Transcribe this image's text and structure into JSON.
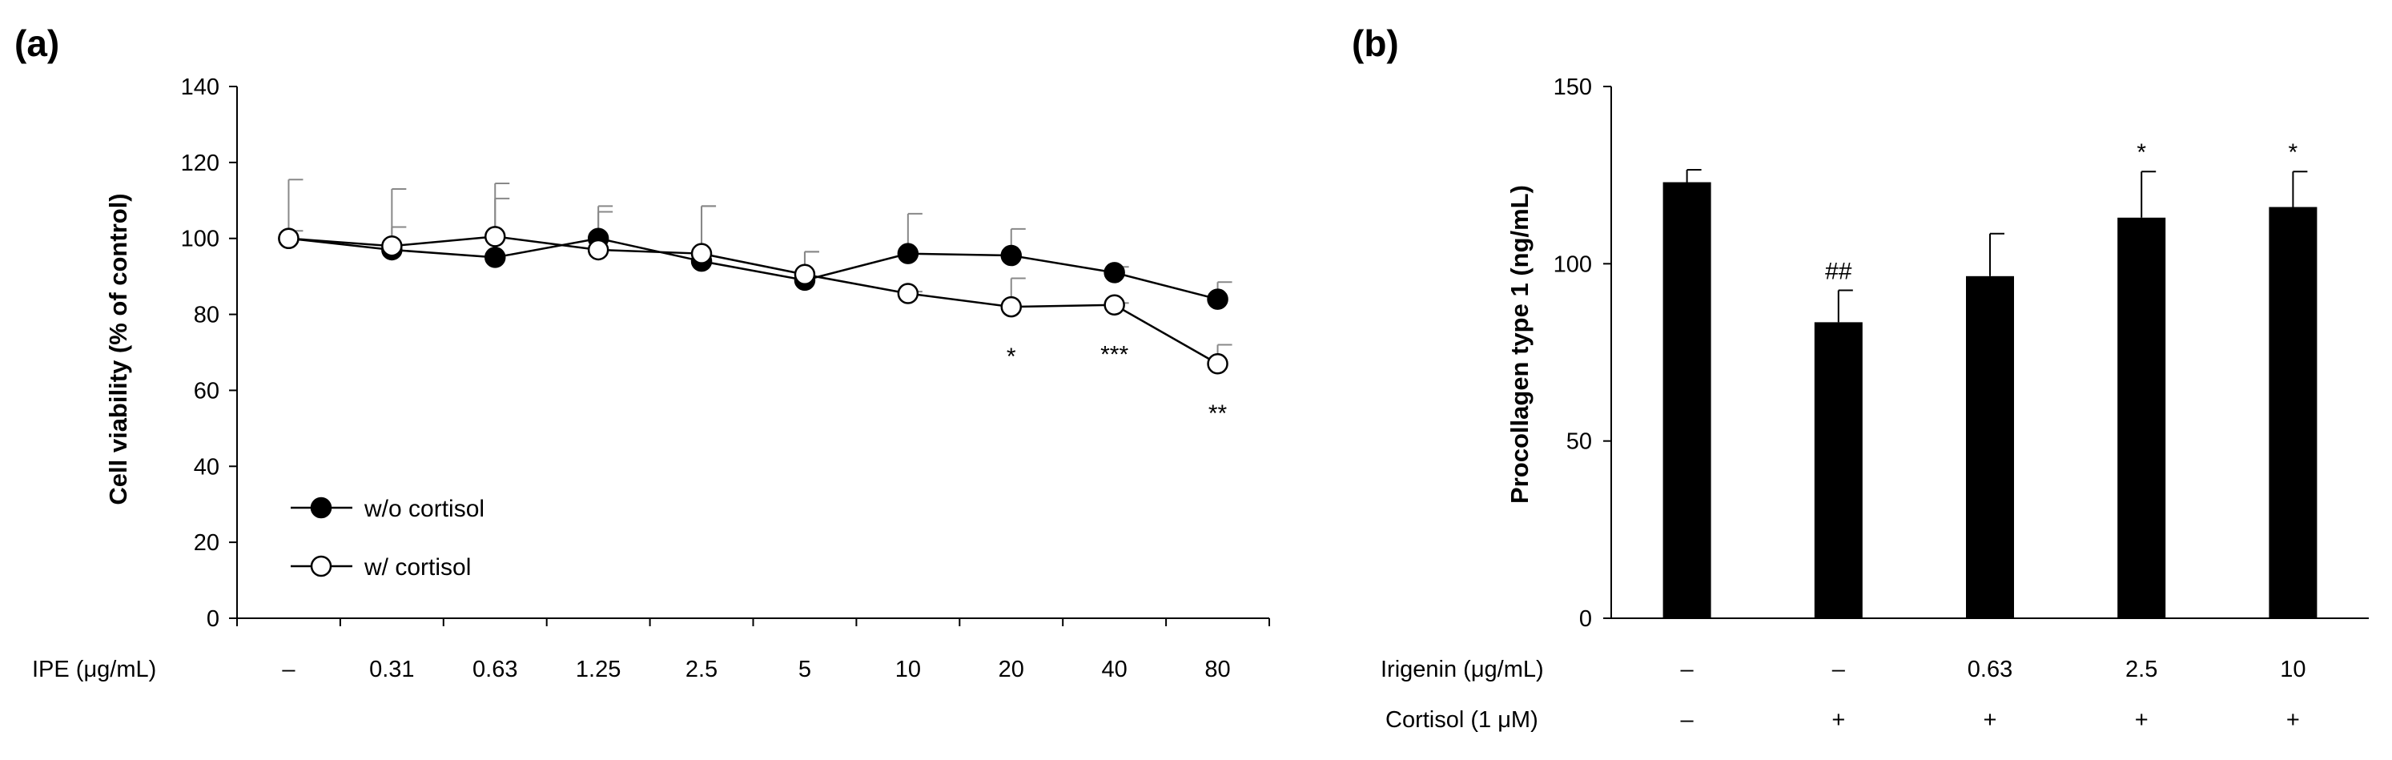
{
  "chart_data": [
    {
      "panel": "(a)",
      "type": "line",
      "ylabel": "Cell viability (% of control)",
      "ylim": [
        0,
        140
      ],
      "yticks": [
        0,
        20,
        40,
        60,
        80,
        100,
        120,
        140
      ],
      "xlabel_row": "IPE (μg/mL)",
      "categories": [
        "–",
        "0.31",
        "0.63",
        "1.25",
        "2.5",
        "5",
        "10",
        "20",
        "40",
        "80"
      ],
      "series": [
        {
          "name": "w/o cortisol",
          "marker": "filled-circle",
          "values": [
            100,
            97,
            95,
            100,
            94,
            89,
            96,
            95.5,
            91,
            84
          ],
          "errors": [
            15.5,
            16,
            19.5,
            8.5,
            14.5,
            7.5,
            10.5,
            7,
            1.5,
            4.5
          ]
        },
        {
          "name": "w/ cortisol",
          "marker": "open-circle",
          "values": [
            100,
            98,
            100.5,
            97,
            96,
            90.5,
            85.5,
            82,
            82.5,
            67
          ],
          "errors": [
            2,
            5,
            10,
            10,
            12.5,
            6,
            0.5,
            7.5,
            0.5,
            5
          ]
        }
      ],
      "annotations": [
        {
          "category": "20",
          "text": "*"
        },
        {
          "category": "40",
          "text": "***"
        },
        {
          "category": "80",
          "text": "**"
        }
      ],
      "legend_position": "bottom-left"
    },
    {
      "panel": "(b)",
      "type": "bar",
      "ylabel": "Procollagen type 1 (ng/mL)",
      "ylim": [
        0,
        150
      ],
      "yticks": [
        0,
        50,
        100,
        150
      ],
      "row_labels": [
        "Irigenin (μg/mL)",
        "Cortisol (1 μM)"
      ],
      "categories": [
        "–",
        "–",
        "0.63",
        "2.5",
        "10"
      ],
      "cortisol": [
        "–",
        "+",
        "+",
        "+",
        "+"
      ],
      "values": [
        123,
        83.5,
        96.5,
        113,
        116
      ],
      "errors": [
        3.5,
        9,
        12,
        13,
        10
      ],
      "annotations": [
        "",
        "##",
        "",
        "*",
        "*"
      ],
      "bar_color": "#000000"
    }
  ]
}
